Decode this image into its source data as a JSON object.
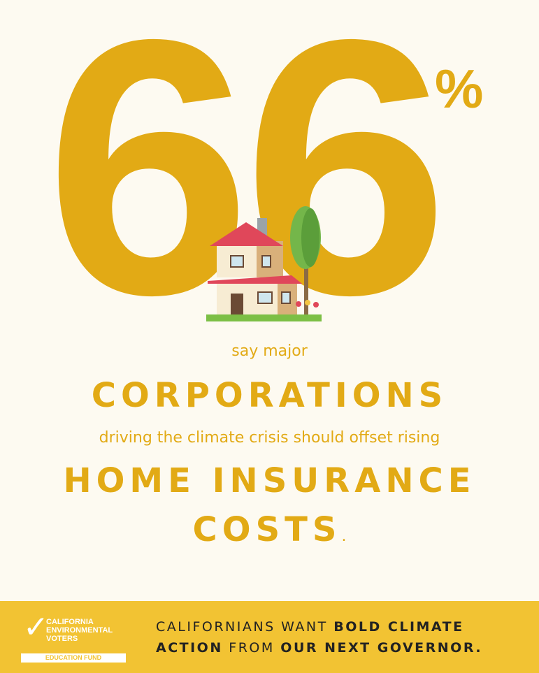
{
  "headline": {
    "number": "66",
    "percent": "%"
  },
  "body": {
    "line1": "say major",
    "line2": "CORPORATIONS",
    "line3": "driving the climate crisis should offset rising",
    "line4": "HOME INSURANCE",
    "line5": "COSTS",
    "line5_period": "."
  },
  "footer": {
    "logo_line1": "CALIFORNIA",
    "logo_line2": "ENVIRONMENTAL",
    "logo_line3": "VOTERS",
    "logo_fund": "EDUCATION FUND",
    "tag_a": "CALIFORNIANS WANT ",
    "tag_b": "BOLD CLIMATE",
    "tag_c": "ACTION",
    "tag_d": " FROM ",
    "tag_e": "OUR NEXT GOVERNOR."
  },
  "colors": {
    "accent": "#e2aa15",
    "background": "#fdfaf1",
    "footer": "#f2c333"
  },
  "icons": [
    "house-illustration",
    "checkmark-logo-icon"
  ]
}
